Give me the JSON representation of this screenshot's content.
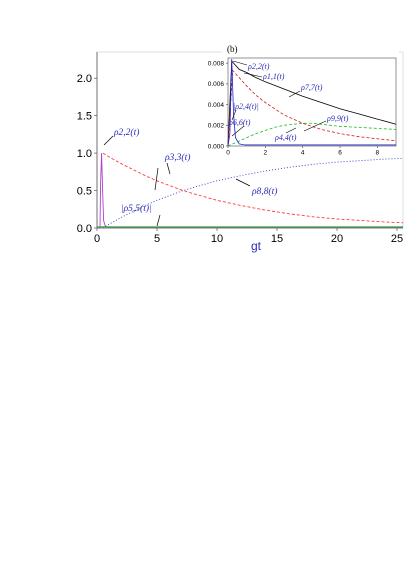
{
  "chart_data": [
    {
      "type": "line",
      "panel": "main",
      "xlabel": "gt",
      "ylabel": "",
      "xlim": [
        0,
        25.5
      ],
      "ylim": [
        0,
        2.35
      ],
      "xticks": [
        "0",
        "5",
        "10",
        "15",
        "20",
        "25"
      ],
      "yticks": [
        "0.0",
        "0.5",
        "1.0",
        "1.5",
        "2.0"
      ],
      "series": [
        {
          "color": "#ff3b3b",
          "style": "dashed",
          "x": [
            0.5,
            1,
            2,
            3,
            4,
            5,
            6,
            7,
            8,
            10,
            12,
            14,
            16,
            18,
            20,
            22,
            24,
            25.5
          ],
          "values": [
            1.0,
            0.95,
            0.86,
            0.78,
            0.7,
            0.63,
            0.57,
            0.51,
            0.46,
            0.37,
            0.3,
            0.24,
            0.19,
            0.15,
            0.12,
            0.1,
            0.08,
            0.07
          ]
        },
        {
          "color": "#3a3ad6",
          "style": "dotted",
          "x": [
            0.5,
            1,
            2,
            3,
            4,
            5,
            6,
            7,
            8,
            10,
            12,
            14,
            16,
            18,
            20,
            22,
            24,
            25.5
          ],
          "values": [
            0.0,
            0.05,
            0.14,
            0.22,
            0.3,
            0.37,
            0.43,
            0.49,
            0.54,
            0.63,
            0.7,
            0.76,
            0.81,
            0.85,
            0.88,
            0.9,
            0.92,
            0.93
          ]
        },
        {
          "color": "#b040d0",
          "style": "solid",
          "x": [
            0.0,
            0.25,
            0.3,
            0.38,
            0.45,
            0.55,
            0.7,
            1.0,
            25.5
          ],
          "values": [
            0.0,
            0.0,
            0.6,
            1.0,
            0.6,
            0.1,
            0.02,
            0.01,
            0.01
          ]
        },
        {
          "color": "#18b018",
          "style": "solid",
          "x": [
            0,
            25.5
          ],
          "values": [
            0.015,
            0.015
          ]
        }
      ],
      "annotations": [
        {
          "label": "ρ2,2(t)"
        },
        {
          "label": "ρ3,3(t)"
        },
        {
          "label": "ρ8,8(t)"
        },
        {
          "label": "|ρ5,5(t)|"
        }
      ]
    },
    {
      "type": "line",
      "panel": "inset",
      "panel_label": "(b)",
      "xlim": [
        0,
        9
      ],
      "ylim": [
        0,
        0.0085
      ],
      "xticks": [
        "0",
        "2",
        "4",
        "6",
        "8"
      ],
      "yticks": [
        "0.000",
        "0.002",
        "0.004",
        "0.006",
        "0.008"
      ],
      "series": [
        {
          "color": "#000000",
          "style": "solid",
          "x": [
            0,
            0.2,
            0.4,
            0.6,
            1,
            1.5,
            2,
            3,
            4,
            5,
            6,
            7,
            8,
            9
          ],
          "values": [
            0,
            0.0082,
            0.0078,
            0.0074,
            0.0071,
            0.0066,
            0.0062,
            0.0055,
            0.0048,
            0.0042,
            0.0036,
            0.0031,
            0.0026,
            0.0021
          ]
        },
        {
          "color": "#e01010",
          "style": "dashed",
          "x": [
            0,
            0.25,
            0.5,
            1,
            1.5,
            2,
            3,
            4,
            5,
            6,
            7,
            8,
            9
          ],
          "values": [
            0,
            0.0073,
            0.0068,
            0.0058,
            0.0049,
            0.0042,
            0.003,
            0.0022,
            0.0016,
            0.0012,
            0.0009,
            0.0007,
            0.0005
          ]
        },
        {
          "color": "#18c018",
          "style": "dashed",
          "x": [
            0,
            0.5,
            1,
            1.5,
            2,
            2.5,
            3,
            3.5,
            4,
            4.5,
            5,
            5.5,
            6,
            7,
            8,
            9
          ],
          "values": [
            0,
            0.0004,
            0.0008,
            0.0012,
            0.0015,
            0.0018,
            0.002,
            0.0021,
            0.0022,
            0.0022,
            0.0021,
            0.002,
            0.0019,
            0.0018,
            0.0017,
            0.0016
          ]
        },
        {
          "color": "#2222cc",
          "style": "solid",
          "x": [
            0,
            0.1,
            0.2,
            0.3,
            0.4,
            0.6,
            0.9,
            9
          ],
          "values": [
            0,
            0.0012,
            0.0084,
            0.003,
            0.0008,
            0.0002,
            0.0001,
            0.0001
          ]
        }
      ],
      "annotations": [
        {
          "label": "ρ2,2(t)"
        },
        {
          "label": "ρ1,1(t)"
        },
        {
          "label": "ρ7,7(t)"
        },
        {
          "label": "|ρ2,4(t)|"
        },
        {
          "label": "ρ9,9(t)"
        },
        {
          "label": "ρ6,6(t)"
        },
        {
          "label": "ρ4,4(t)"
        }
      ]
    }
  ]
}
